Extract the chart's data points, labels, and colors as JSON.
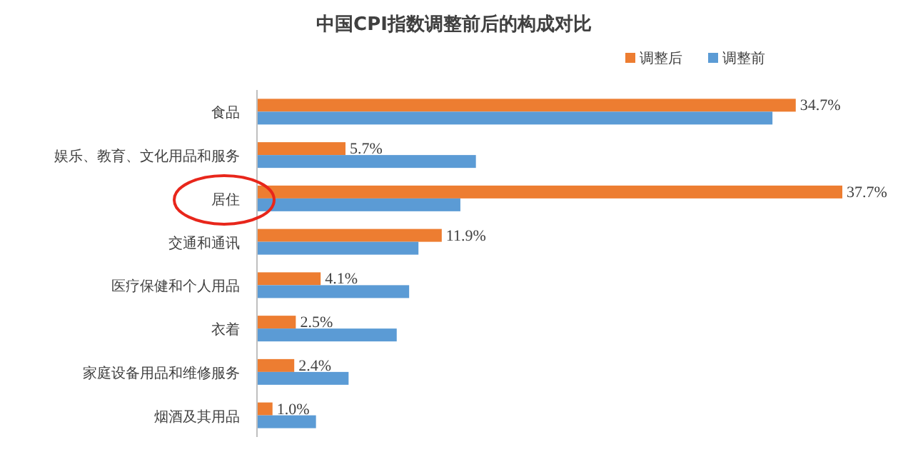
{
  "chart_data": {
    "type": "bar",
    "orientation": "horizontal",
    "title": "中国CPI指数调整前后的构成对比",
    "categories": [
      "食品",
      "娱乐、教育、文化用品和服务",
      "居住",
      "交通和通讯",
      "医疗保健和个人用品",
      "衣着",
      "家庭设备用品和维修服务",
      "烟酒及其用品"
    ],
    "series": [
      {
        "name": "调整后",
        "color": "#ed7d31",
        "values": [
          34.7,
          5.7,
          37.7,
          11.9,
          4.1,
          2.5,
          2.4,
          1.0
        ],
        "value_labels": [
          "34.7%",
          "5.7%",
          "37.7%",
          "11.9%",
          "4.1%",
          "2.5%",
          "2.4%",
          "1.0%"
        ]
      },
      {
        "name": "调整前",
        "color": "#5b9bd5",
        "values": [
          33.2,
          14.1,
          13.1,
          10.4,
          9.8,
          9.0,
          5.9,
          3.8
        ]
      }
    ],
    "legend": "top right",
    "grid": false
  }
}
